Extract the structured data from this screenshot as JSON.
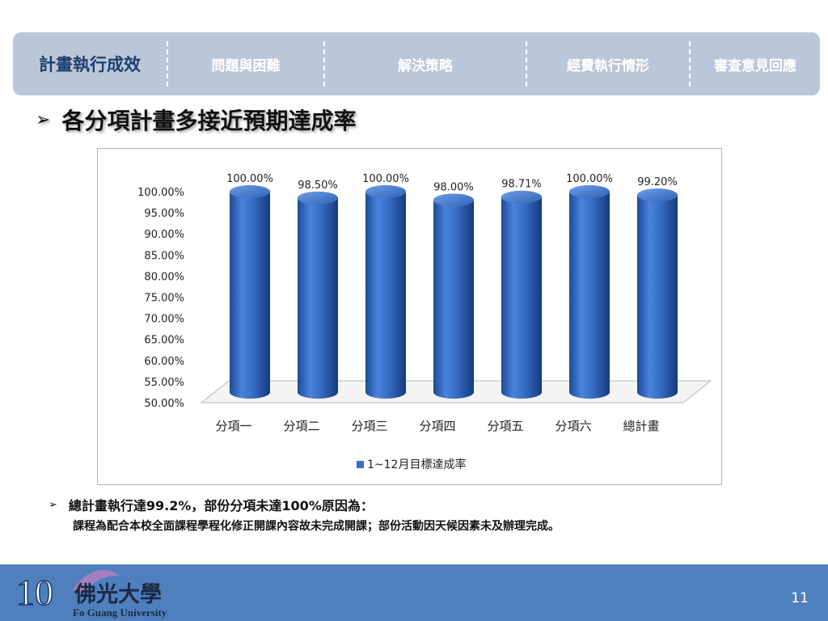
{
  "nav": {
    "items": [
      {
        "label": "計畫執行成效",
        "active": true
      },
      {
        "label": "問題與困難",
        "active": false
      },
      {
        "label": "解決策略",
        "active": false
      },
      {
        "label": "經費執行情形",
        "active": false
      },
      {
        "label": "審查意見回應",
        "active": false
      }
    ]
  },
  "heading": {
    "bullet": "➢",
    "text": "各分項計畫多接近預期達成率"
  },
  "chart_data": {
    "type": "bar",
    "style": "3d-cylinder",
    "categories": [
      "分項一",
      "分項二",
      "分項三",
      "分項四",
      "分項五",
      "分項六",
      "總計畫"
    ],
    "series": [
      {
        "name": "1~12月目標達成率",
        "values": [
          100.0,
          98.5,
          100.0,
          98.0,
          98.71,
          100.0,
          99.2
        ],
        "color": "#3a6fc6"
      }
    ],
    "data_labels": [
      "100.00%",
      "98.50%",
      "100.00%",
      "98.00%",
      "98.71%",
      "100.00%",
      "99.20%"
    ],
    "ylim": [
      50,
      100
    ],
    "yticks": [
      "100.00%",
      "95.00%",
      "90.00%",
      "85.00%",
      "80.00%",
      "75.00%",
      "70.00%",
      "65.00%",
      "60.00%",
      "55.00%",
      "50.00%"
    ],
    "legend": "bottom",
    "grid": false
  },
  "note": {
    "bullet": "➢",
    "line1": "總計畫執行達99.2%，部份分項未達100%原因為：",
    "line2": "課程為配合本校全面課程學程化修正開課內容故未完成開課；部份活動因天候因素未及辦理完成。"
  },
  "footer": {
    "logo_text": "10 佛光大學 Fo Guang University",
    "page_number": "11"
  }
}
